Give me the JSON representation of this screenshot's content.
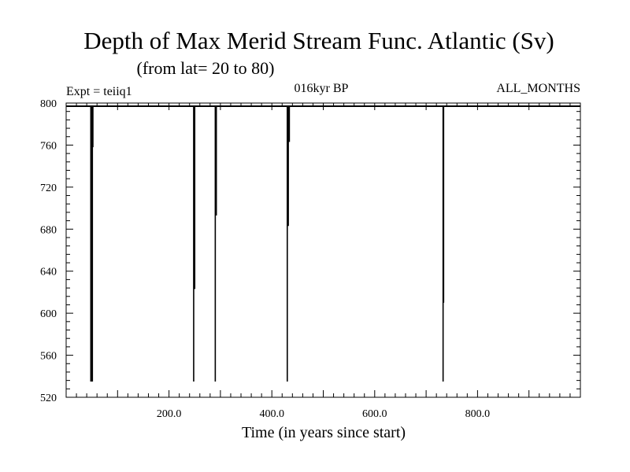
{
  "header": {
    "title": "Depth of Max Merid Stream Func. Atlantic (Sv)",
    "subtitle": "(from lat= 20 to 80)",
    "expt": "Expt = teiiq1",
    "period": "016kyr BP",
    "months": "ALL_MONTHS"
  },
  "chart_data": {
    "type": "line",
    "title": "Depth of Max Merid Stream Func. Atlantic (Sv)",
    "subtitle": "(from lat= 20 to 80)",
    "xlabel": "Time (in years since start)",
    "ylabel": "",
    "xlim": [
      0,
      1000
    ],
    "ylim": [
      520,
      800
    ],
    "x_ticks": [
      {
        "value": 200,
        "label": "200.0"
      },
      {
        "value": 400,
        "label": "400.0"
      },
      {
        "value": 600,
        "label": "600.0"
      },
      {
        "value": 800,
        "label": "800.0"
      }
    ],
    "y_ticks": [
      {
        "value": 520,
        "label": "520"
      },
      {
        "value": 560,
        "label": "560"
      },
      {
        "value": 600,
        "label": "600"
      },
      {
        "value": 640,
        "label": "640"
      },
      {
        "value": 680,
        "label": "680"
      },
      {
        "value": 720,
        "label": "720"
      },
      {
        "value": 760,
        "label": "760"
      },
      {
        "value": 800,
        "label": "800"
      }
    ],
    "baseline": 797,
    "spikes": [
      {
        "x": 48,
        "min": 535
      },
      {
        "x": 49,
        "min": 535
      },
      {
        "x": 50,
        "min": 535
      },
      {
        "x": 51,
        "min": 535
      },
      {
        "x": 52,
        "min": 758
      },
      {
        "x": 248,
        "min": 535
      },
      {
        "x": 250,
        "min": 623
      },
      {
        "x": 290,
        "min": 535
      },
      {
        "x": 292,
        "min": 693
      },
      {
        "x": 430,
        "min": 535
      },
      {
        "x": 432,
        "min": 683
      },
      {
        "x": 434,
        "min": 763
      },
      {
        "x": 733,
        "min": 535
      },
      {
        "x": 734,
        "min": 610
      }
    ]
  }
}
